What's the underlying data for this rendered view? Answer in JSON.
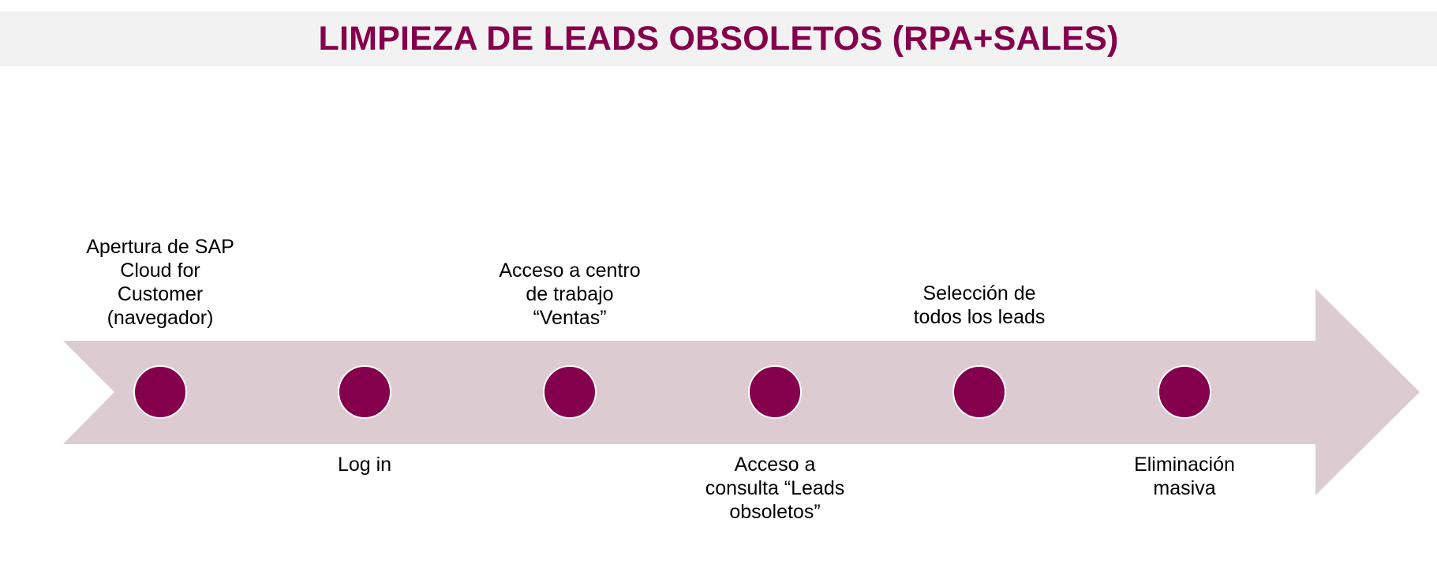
{
  "title": "LIMPIEZA DE LEADS OBSOLETOS (RPA+SALES)",
  "colors": {
    "accent": "#85004c",
    "arrow": "#dccbd1",
    "title_band": "#f2f2f2",
    "text": "#000000"
  },
  "steps": [
    {
      "label": "Apertura de SAP\nCloud for\nCustomer\n(navegador)",
      "position": "above"
    },
    {
      "label": "Log in",
      "position": "below"
    },
    {
      "label": "Acceso a centro\nde trabajo\n“Ventas”",
      "position": "above"
    },
    {
      "label": "Acceso a\nconsulta “Leads\nobsoletos”",
      "position": "below"
    },
    {
      "label": "Selección de\ntodos los leads",
      "position": "above"
    },
    {
      "label": "Eliminación\nmasiva",
      "position": "below"
    }
  ]
}
